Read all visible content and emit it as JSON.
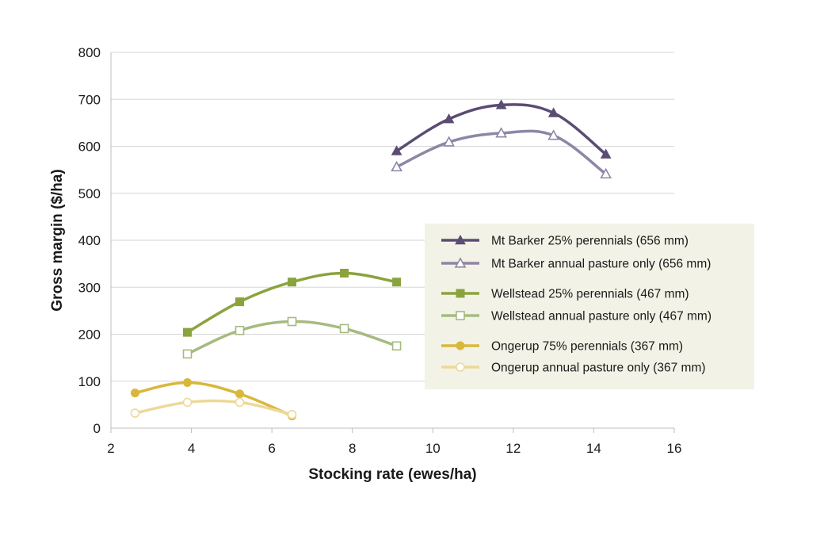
{
  "chart_data": {
    "type": "line",
    "title": "",
    "xlabel": "Stocking rate (ewes/ha)",
    "ylabel": "Gross margin ($/ha)",
    "xlim": [
      2,
      16
    ],
    "ylim": [
      0,
      800
    ],
    "xticks": [
      2,
      4,
      6,
      8,
      10,
      12,
      14,
      16
    ],
    "yticks": [
      0,
      100,
      200,
      300,
      400,
      500,
      600,
      700,
      800
    ],
    "grid": "horizontal",
    "legend_position": "right",
    "legend_background": "#f3f2e6",
    "series": [
      {
        "name": "Mt Barker 25% perennials (656 mm)",
        "color": "#5a4c73",
        "marker": "triangle",
        "filled": true,
        "x": [
          9.1,
          10.4,
          11.7,
          13.0,
          14.3
        ],
        "y": [
          590,
          658,
          688,
          671,
          583
        ]
      },
      {
        "name": "Mt Barker annual pasture only (656 mm)",
        "color": "#8f86a6",
        "marker": "triangle",
        "filled": false,
        "x": [
          9.1,
          10.4,
          11.7,
          13.0,
          14.3
        ],
        "y": [
          556,
          609,
          628,
          623,
          541
        ]
      },
      {
        "name": "Wellstead 25% perennials (467 mm)",
        "color": "#8ba33d",
        "marker": "square",
        "filled": true,
        "x": [
          3.9,
          5.2,
          6.5,
          7.8,
          9.1
        ],
        "y": [
          204,
          269,
          311,
          330,
          311
        ]
      },
      {
        "name": "Wellstead annual pasture only (467 mm)",
        "color": "#a5bb80",
        "marker": "square",
        "filled": false,
        "x": [
          3.9,
          5.2,
          6.5,
          7.8,
          9.1
        ],
        "y": [
          158,
          208,
          227,
          212,
          175
        ]
      },
      {
        "name": "Ongerup 75% perennials (367 mm)",
        "color": "#d9b73a",
        "marker": "circle",
        "filled": true,
        "x": [
          2.6,
          3.9,
          5.2,
          6.5
        ],
        "y": [
          75,
          97,
          73,
          26
        ]
      },
      {
        "name": "Ongerup annual pasture only (367 mm)",
        "color": "#ecd99a",
        "marker": "circle",
        "filled": false,
        "x": [
          2.6,
          3.9,
          5.2,
          6.5
        ],
        "y": [
          32,
          55,
          55,
          29
        ]
      }
    ]
  }
}
